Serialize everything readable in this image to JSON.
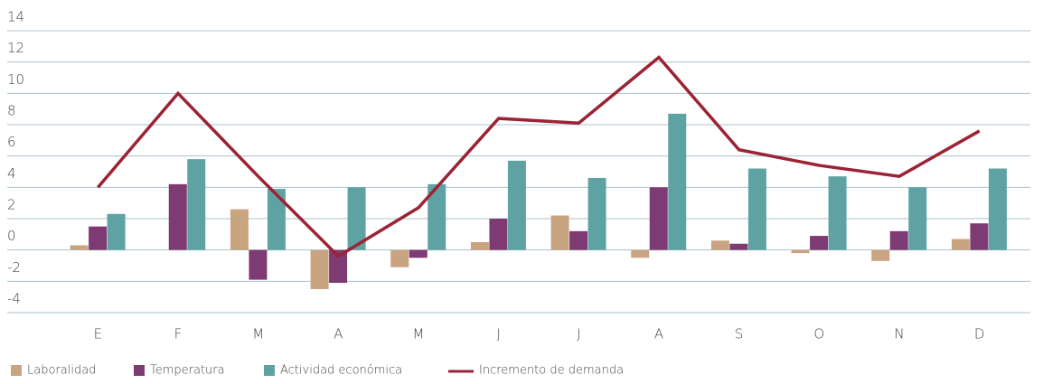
{
  "chart_data": {
    "type": "bar-line",
    "categories": [
      "E",
      "F",
      "M",
      "A",
      "M",
      "J",
      "J",
      "A",
      "S",
      "O",
      "N",
      "D"
    ],
    "series": [
      {
        "name": "Laboralidad",
        "type": "bar",
        "color": "#c9a481",
        "values": [
          0.3,
          0,
          2.6,
          -2.5,
          -1.1,
          0.5,
          2.2,
          -0.5,
          0.6,
          -0.2,
          -0.7,
          0.7
        ]
      },
      {
        "name": "Temperatura",
        "type": "bar",
        "color": "#7e3a72",
        "values": [
          1.5,
          4.2,
          -1.9,
          -2.1,
          -0.5,
          2.0,
          1.2,
          4.0,
          0.4,
          0.9,
          1.2,
          1.7
        ]
      },
      {
        "name": "Actividad económica",
        "type": "bar",
        "color": "#5fa2a3",
        "values": [
          2.3,
          5.8,
          3.9,
          4.0,
          4.2,
          5.7,
          4.6,
          8.7,
          5.2,
          4.7,
          4.0,
          5.2
        ]
      },
      {
        "name": "Incremento de demanda",
        "type": "line",
        "color": "#9b2335",
        "values": [
          4.0,
          10.0,
          4.7,
          -0.4,
          2.7,
          8.4,
          8.1,
          12.3,
          6.4,
          5.4,
          4.7,
          7.6
        ]
      }
    ],
    "ylim": [
      -4,
      14
    ],
    "yticks": [
      -4,
      -2,
      0,
      2,
      4,
      6,
      8,
      10,
      12,
      14
    ],
    "grid": true
  }
}
